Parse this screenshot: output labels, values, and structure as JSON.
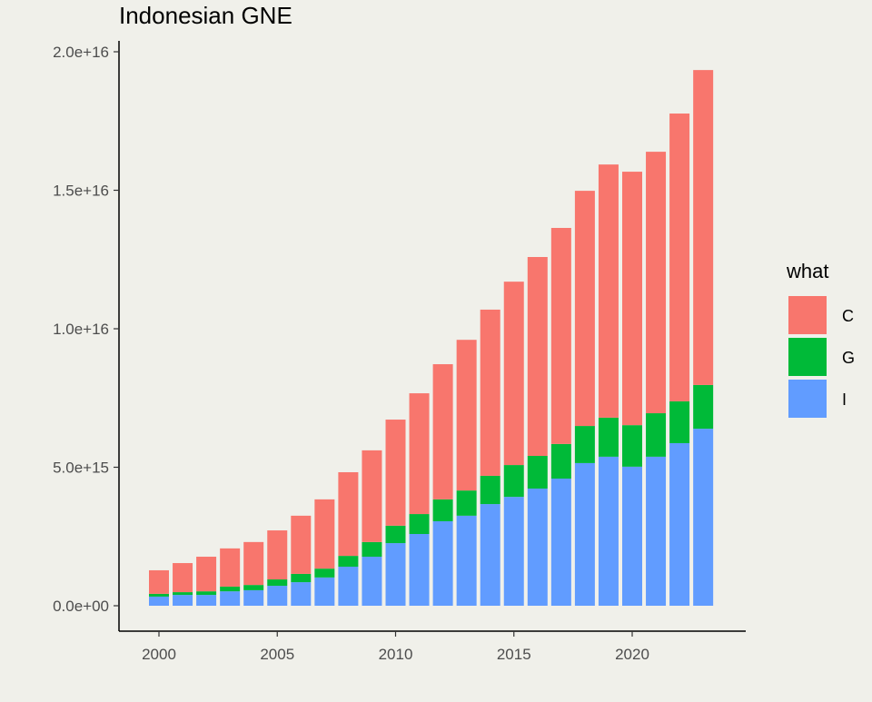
{
  "chart_data": {
    "type": "bar",
    "stacked": true,
    "title": "Indonesian GNE",
    "xlabel": "",
    "ylabel": "",
    "x": [
      2000,
      2001,
      2002,
      2003,
      2004,
      2005,
      2006,
      2007,
      2008,
      2009,
      2010,
      2011,
      2012,
      2013,
      2014,
      2015,
      2016,
      2017,
      2018,
      2019,
      2020,
      2021,
      2022,
      2023
    ],
    "ylim": [
      0,
      2e+16
    ],
    "yticks": [
      0,
      5000000000000000.0,
      1e+16,
      1.5e+16,
      2e+16
    ],
    "ytick_labels": [
      "0.0e+00",
      "5.0e+15",
      "1.0e+16",
      "1.5e+16",
      "2.0e+16"
    ],
    "xticks": [
      2000,
      2005,
      2010,
      2015,
      2020
    ],
    "xtick_labels": [
      "2000",
      "2005",
      "2010",
      "2015",
      "2020"
    ],
    "legend": {
      "title": "what",
      "position": "right"
    },
    "series": [
      {
        "name": "I",
        "color": "#619cff",
        "values": [
          330000000000000.0,
          390000000000000.0,
          390000000000000.0,
          520000000000000.0,
          560000000000000.0,
          720000000000000.0,
          850000000000000.0,
          1020000000000000.0,
          1410000000000000.0,
          1770000000000000.0,
          2260000000000000.0,
          2590000000000000.0,
          3050000000000000.0,
          3250000000000000.0,
          3670000000000000.0,
          3930000000000000.0,
          4230000000000000.0,
          4590000000000000.0,
          5150000000000000.0,
          5380000000000000.0,
          5020000000000000.0,
          5380000000000000.0,
          5870000000000000.0,
          6390000000000000.0
        ]
      },
      {
        "name": "G",
        "color": "#00ba38",
        "values": [
          100000000000000.0,
          100000000000000.0,
          130000000000000.0,
          170000000000000.0,
          190000000000000.0,
          230000000000000.0,
          300000000000000.0,
          320000000000000.0,
          390000000000000.0,
          530000000000000.0,
          630000000000000.0,
          720000000000000.0,
          790000000000000.0,
          910000000000000.0,
          1020000000000000.0,
          1150000000000000.0,
          1180000000000000.0,
          1250000000000000.0,
          1340000000000000.0,
          1410000000000000.0,
          1500000000000000.0,
          1570000000000000.0,
          1510000000000000.0,
          1580000000000000.0
        ]
      },
      {
        "name": "C",
        "color": "#f8766d",
        "values": [
          850000000000000.0,
          1050000000000000.0,
          1250000000000000.0,
          1380000000000000.0,
          1550000000000000.0,
          1770000000000000.0,
          2100000000000000.0,
          2500000000000000.0,
          3020000000000000.0,
          3310000000000000.0,
          3830000000000000.0,
          4360000000000000.0,
          4880000000000000.0,
          5440000000000000.0,
          6000000000000000.0,
          6620000000000000.0,
          7180000000000000.0,
          7800000000000000.0,
          8490000000000000.0,
          9140000000000000.0,
          9150000000000000.0,
          9440000000000000.0,
          1.039e+16,
          1.137e+16
        ]
      }
    ]
  }
}
